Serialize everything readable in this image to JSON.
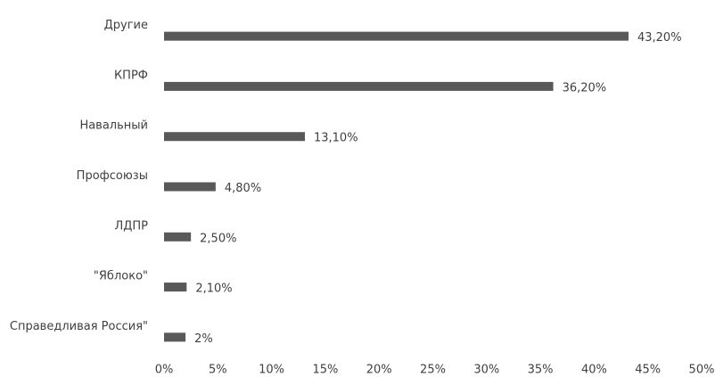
{
  "chart_data": {
    "type": "hbar",
    "categories": [
      "Другие",
      "КПРФ",
      "Навальный",
      "Профсоюзы",
      "ЛДПР",
      "\"Яблоко\"",
      "Справедливая Россия\""
    ],
    "values": [
      43.2,
      36.2,
      13.1,
      4.8,
      2.5,
      2.1,
      2
    ],
    "value_labels": [
      "43,20%",
      "36,20%",
      "13,10%",
      "4,80%",
      "2,50%",
      "2,10%",
      "2%"
    ],
    "color": "#595959",
    "xlim": [
      0,
      50
    ],
    "xticks": [
      {
        "value": 0,
        "label": "0%"
      },
      {
        "value": 5,
        "label": "5%"
      },
      {
        "value": 10,
        "label": "10%"
      },
      {
        "value": 15,
        "label": "15%"
      },
      {
        "value": 20,
        "label": "20%"
      },
      {
        "value": 25,
        "label": "25%"
      },
      {
        "value": 30,
        "label": "30%"
      },
      {
        "value": 35,
        "label": "35%"
      },
      {
        "value": 40,
        "label": "40%"
      },
      {
        "value": 45,
        "label": "45%"
      },
      {
        "value": 50,
        "label": "50%"
      }
    ],
    "grid": false
  }
}
